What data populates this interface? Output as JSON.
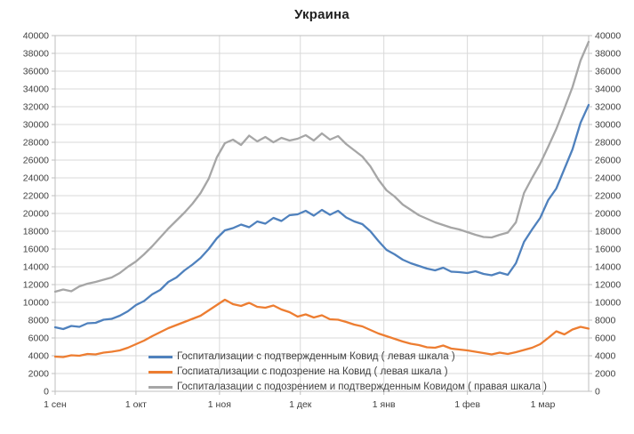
{
  "chart_data": {
    "type": "line",
    "title": "Украина",
    "grid": true,
    "legend_position": "inside-bottom-left",
    "x_axis": {
      "unit": "date",
      "total_days": 198,
      "ticks": [
        {
          "day": 0,
          "label": "1 сен"
        },
        {
          "day": 30,
          "label": "1 окт"
        },
        {
          "day": 61,
          "label": "1 ноя"
        },
        {
          "day": 91,
          "label": "1 дек"
        },
        {
          "day": 122,
          "label": "1 янв"
        },
        {
          "day": 153,
          "label": "1 фев"
        },
        {
          "day": 181,
          "label": "1 мар"
        }
      ]
    },
    "y_left": {
      "min": 0,
      "max": 40000,
      "step": 2000,
      "tick_labels": [
        "0",
        "2000",
        "4000",
        "6000",
        "8000",
        "10000",
        "12000",
        "14000",
        "16000",
        "18000",
        "20000",
        "22000",
        "24000",
        "26000",
        "28000",
        "30000",
        "32000",
        "34000",
        "36000",
        "38000",
        "40000"
      ]
    },
    "y_right": {
      "min": 0,
      "max": 40000,
      "step": 2000,
      "tick_labels": [
        "0",
        "2000",
        "4000",
        "6000",
        "8000",
        "10000",
        "12000",
        "14000",
        "16000",
        "18000",
        "20000",
        "22000",
        "24000",
        "26000",
        "28000",
        "30000",
        "32000",
        "34000",
        "36000",
        "38000",
        "40000"
      ]
    },
    "x_days": [
      0,
      3,
      6,
      9,
      12,
      15,
      18,
      21,
      24,
      27,
      30,
      33,
      36,
      39,
      42,
      45,
      48,
      51,
      54,
      57,
      60,
      63,
      66,
      69,
      72,
      75,
      78,
      81,
      84,
      87,
      90,
      93,
      96,
      99,
      102,
      105,
      108,
      111,
      114,
      117,
      120,
      123,
      126,
      129,
      132,
      135,
      138,
      141,
      144,
      147,
      150,
      153,
      156,
      159,
      162,
      165,
      168,
      171,
      174,
      177,
      180,
      183,
      186,
      189,
      192,
      195,
      198
    ],
    "series": [
      {
        "name": "Госпитализации с подтвержденным Ковид ( левая шкала )",
        "axis": "left",
        "color": "#4f81bd",
        "values": [
          7200,
          7000,
          7350,
          7250,
          7650,
          7700,
          8050,
          8150,
          8500,
          9000,
          9700,
          10150,
          10900,
          11400,
          12300,
          12800,
          13600,
          14250,
          15000,
          16000,
          17200,
          18100,
          18350,
          18750,
          18450,
          19100,
          18850,
          19500,
          19150,
          19800,
          19900,
          20300,
          19750,
          20400,
          19850,
          20300,
          19550,
          19100,
          18800,
          18000,
          16900,
          15900,
          15400,
          14800,
          14400,
          14100,
          13800,
          13600,
          13900,
          13450,
          13400,
          13300,
          13500,
          13200,
          13050,
          13350,
          13100,
          14400,
          16800,
          18200,
          19500,
          21500,
          22800,
          25000,
          27200,
          30200,
          32200
        ]
      },
      {
        "name": "Госпиатализации с подозрение на Ковид ( левая шкала )",
        "axis": "left",
        "color": "#ed7d31",
        "values": [
          3900,
          3850,
          4050,
          4000,
          4200,
          4150,
          4350,
          4450,
          4600,
          4900,
          5300,
          5700,
          6200,
          6650,
          7100,
          7450,
          7800,
          8150,
          8500,
          9100,
          9700,
          10300,
          9800,
          9600,
          9950,
          9500,
          9400,
          9650,
          9200,
          8900,
          8400,
          8650,
          8300,
          8550,
          8100,
          8050,
          7800,
          7500,
          7300,
          6900,
          6500,
          6200,
          5900,
          5600,
          5350,
          5200,
          4950,
          4900,
          5150,
          4800,
          4700,
          4600,
          4450,
          4300,
          4150,
          4350,
          4200,
          4400,
          4650,
          4900,
          5300,
          6000,
          6750,
          6400,
          6950,
          7250,
          7050
        ]
      },
      {
        "name": "Госпиталазации с подозрением и подтвержденным Ковидом ( правая шкала )",
        "axis": "right",
        "color": "#a6a6a6",
        "values": [
          11200,
          11450,
          11250,
          11800,
          12100,
          12300,
          12550,
          12800,
          13300,
          14000,
          14600,
          15400,
          16300,
          17300,
          18300,
          19200,
          20100,
          21100,
          22300,
          23900,
          26300,
          27900,
          28300,
          27700,
          28750,
          28100,
          28600,
          28000,
          28500,
          28200,
          28400,
          28800,
          28200,
          29000,
          28300,
          28700,
          27800,
          27100,
          26400,
          25300,
          23800,
          22600,
          21900,
          21000,
          20400,
          19800,
          19400,
          19000,
          18700,
          18400,
          18200,
          17900,
          17600,
          17350,
          17300,
          17600,
          17850,
          19000,
          22300,
          24000,
          25600,
          27500,
          29500,
          31800,
          34200,
          37200,
          39300
        ]
      }
    ]
  },
  "style": {
    "gridline_color": "#d9d9d9",
    "axis_color": "#bfbfbf",
    "tick_label_color": "#404040",
    "background": "#ffffff"
  }
}
